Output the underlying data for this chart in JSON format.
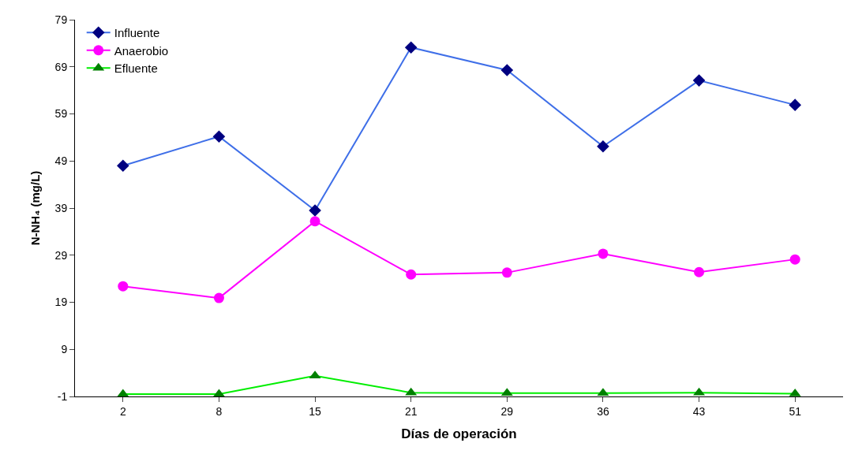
{
  "chart_data": {
    "type": "line",
    "xlabel": "Días de operación",
    "ylabel": "N-NH₄ (mg/L)",
    "categories": [
      "2",
      "8",
      "15",
      "21",
      "29",
      "36",
      "43",
      "51"
    ],
    "ylim": [
      -1,
      79
    ],
    "yticks": [
      -1,
      9,
      19,
      29,
      39,
      49,
      59,
      69,
      79
    ],
    "legend": "top left",
    "series": [
      {
        "name": "Influente",
        "color": "#3f6fe8",
        "colors": [
          "#000080",
          "#000080",
          "#000080",
          "#000080",
          "#000080",
          "#000080",
          "#000080",
          "#000080"
        ],
        "marker": "diamond",
        "values": [
          48.0,
          54.2,
          38.5,
          73.1,
          68.3,
          52.1,
          66.1,
          60.9
        ]
      },
      {
        "name": "Anaerobio",
        "color": "#ff00ff",
        "marker": "circle",
        "values": [
          22.4,
          19.9,
          36.2,
          24.9,
          25.3,
          29.3,
          25.4,
          28.1
        ]
      },
      {
        "name": "Efluente",
        "color": "#00ee00",
        "colors": [
          "#008000",
          "#008000",
          "#008000",
          "#008000",
          "#008000",
          "#008000",
          "#008000",
          "#008000"
        ],
        "marker": "triangle",
        "values": [
          -0.5,
          -0.5,
          3.4,
          -0.2,
          -0.3,
          -0.3,
          -0.2,
          -0.4
        ]
      }
    ]
  }
}
